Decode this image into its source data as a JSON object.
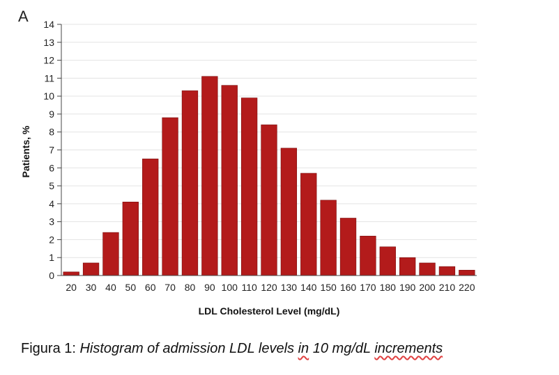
{
  "panel_label": "A",
  "caption": {
    "prefix": "Figura 1: ",
    "part1": "Histogram of admission LDL levels ",
    "word_in": "in",
    "part2": " 10 mg/dL ",
    "word_increments": "increments"
  },
  "chart_data": {
    "type": "bar",
    "title": "",
    "xlabel": "LDL Cholesterol Level (mg/dL)",
    "ylabel": "Patients, %",
    "ylim": [
      0,
      14
    ],
    "yticks": [
      0,
      1,
      2,
      3,
      4,
      5,
      6,
      7,
      8,
      9,
      10,
      11,
      12,
      13,
      14
    ],
    "grid": true,
    "bar_color": "#b31b1b",
    "categories": [
      "20",
      "30",
      "40",
      "50",
      "60",
      "70",
      "80",
      "90",
      "100",
      "110",
      "120",
      "130",
      "140",
      "150",
      "160",
      "170",
      "180",
      "190",
      "200",
      "210",
      "220"
    ],
    "values": [
      0.2,
      0.7,
      2.4,
      4.1,
      6.5,
      8.8,
      10.3,
      11.1,
      10.6,
      9.9,
      8.4,
      7.1,
      5.7,
      4.2,
      3.2,
      2.2,
      1.6,
      1.0,
      0.7,
      0.5,
      0.3
    ]
  }
}
